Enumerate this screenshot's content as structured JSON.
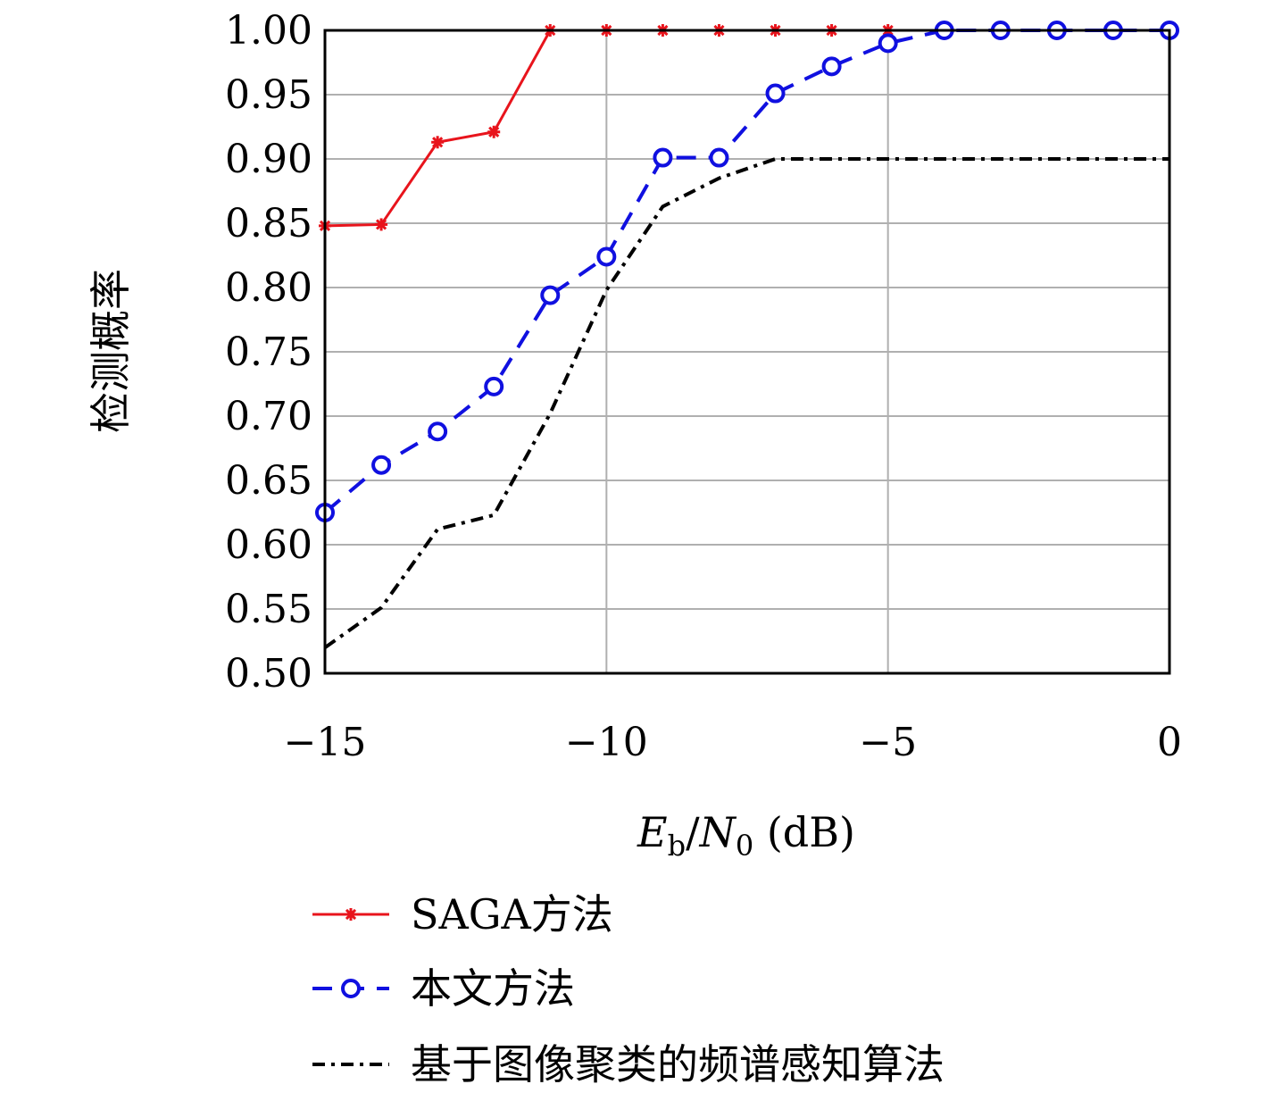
{
  "chart_data": {
    "type": "line",
    "title": "",
    "xlabel": "E_b/N_0 (dB)",
    "ylabel": "检测概率",
    "x": [
      -15,
      -14,
      -13,
      -12,
      -11,
      -10,
      -9,
      -8,
      -7,
      -6,
      -5,
      -4,
      -3,
      -2,
      -1,
      0
    ],
    "xlim": [
      -15,
      0
    ],
    "ylim": [
      0.5,
      1.0
    ],
    "xticks": [
      -15,
      -10,
      -5,
      0
    ],
    "xtick_labels": [
      "−15",
      "−10",
      "−5",
      "0"
    ],
    "yticks": [
      0.5,
      0.55,
      0.6,
      0.65,
      0.7,
      0.75,
      0.8,
      0.85,
      0.9,
      0.95,
      1.0
    ],
    "ytick_labels": [
      "0.50",
      "0.55",
      "0.60",
      "0.65",
      "0.70",
      "0.75",
      "0.80",
      "0.85",
      "0.90",
      "0.95",
      "1.00"
    ],
    "grid": true,
    "legend_position": "below",
    "series": [
      {
        "name": "SAGA方法",
        "color": "#e8141c",
        "marker": "asterisk",
        "line_style": "solid",
        "values": [
          0.848,
          0.849,
          0.913,
          0.921,
          1.0,
          1.0,
          1.0,
          1.0,
          1.0,
          1.0,
          1.0,
          1.0,
          1.0,
          1.0,
          1.0,
          1.0
        ]
      },
      {
        "name": "本文方法",
        "color": "#1010e0",
        "marker": "circle",
        "line_style": "dashed",
        "values": [
          0.625,
          0.662,
          0.688,
          0.723,
          0.794,
          0.824,
          0.901,
          0.901,
          0.951,
          0.972,
          0.99,
          1.0,
          1.0,
          1.0,
          1.0,
          1.0
        ]
      },
      {
        "name": "基于图像聚类的频谱感知算法",
        "color": "#000000",
        "marker": "none",
        "line_style": "dashdot",
        "values": [
          0.52,
          0.551,
          0.612,
          0.623,
          0.702,
          0.798,
          0.863,
          0.885,
          0.9,
          0.9,
          0.9,
          0.9,
          0.9,
          0.9,
          0.9,
          0.9
        ]
      }
    ]
  }
}
